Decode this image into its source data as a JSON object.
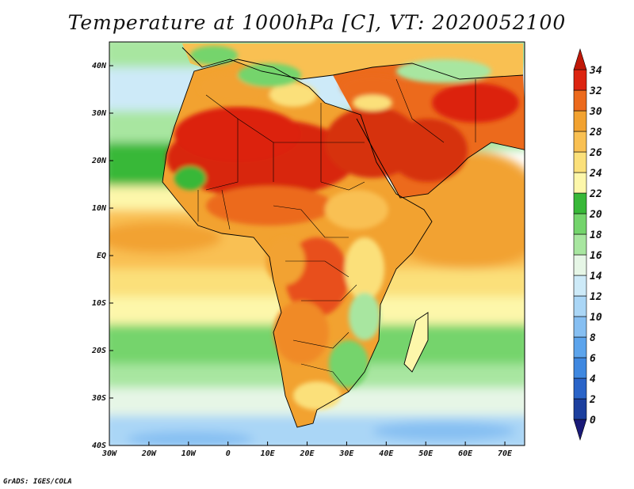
{
  "title": "Temperature at 1000hPa [C], VT: 2020052100",
  "credit": "GrADS: IGES/COLA",
  "map": {
    "lon_range": [
      -30,
      75
    ],
    "lat_range": [
      -40,
      45
    ],
    "x_ticks": [
      {
        "value": -30,
        "label": "30W"
      },
      {
        "value": -20,
        "label": "20W"
      },
      {
        "value": -10,
        "label": "10W"
      },
      {
        "value": 0,
        "label": "0"
      },
      {
        "value": 10,
        "label": "10E"
      },
      {
        "value": 20,
        "label": "20E"
      },
      {
        "value": 30,
        "label": "30E"
      },
      {
        "value": 40,
        "label": "40E"
      },
      {
        "value": 50,
        "label": "50E"
      },
      {
        "value": 60,
        "label": "60E"
      },
      {
        "value": 70,
        "label": "70E"
      }
    ],
    "y_ticks": [
      {
        "value": 40,
        "label": "40N"
      },
      {
        "value": 30,
        "label": "30N"
      },
      {
        "value": 20,
        "label": "20N"
      },
      {
        "value": 10,
        "label": "10N"
      },
      {
        "value": 0,
        "label": "EQ"
      },
      {
        "value": -10,
        "label": "10S"
      },
      {
        "value": -20,
        "label": "20S"
      },
      {
        "value": -30,
        "label": "30S"
      },
      {
        "value": -40,
        "label": "40S"
      }
    ]
  },
  "colorbar": {
    "labels": [
      "0",
      "2",
      "4",
      "6",
      "8",
      "10",
      "12",
      "14",
      "16",
      "18",
      "20",
      "22",
      "24",
      "26",
      "28",
      "30",
      "32",
      "34"
    ],
    "colors": [
      "#1a1a78",
      "#1c3f9e",
      "#2a64c8",
      "#3f88e0",
      "#5ca4ec",
      "#86bff2",
      "#aad6f6",
      "#cdeaf8",
      "#e6f6e6",
      "#a8e6a0",
      "#74d46c",
      "#38b838",
      "#fdf7aa",
      "#fbe07a",
      "#f9c052",
      "#f2a230",
      "#ec6a1c",
      "#dc2410",
      "#c01808"
    ]
  },
  "regions": [
    {
      "name": "sahara-hot",
      "color": "#d8280e"
    },
    {
      "name": "arabia-hot",
      "color": "#d63010"
    },
    {
      "name": "congo-warm",
      "color": "#e8501a"
    },
    {
      "name": "kalahari-warm",
      "color": "#f08a28"
    },
    {
      "name": "med-cool",
      "color": "#74d46c"
    },
    {
      "name": "sa-green",
      "color": "#74d46c"
    }
  ]
}
